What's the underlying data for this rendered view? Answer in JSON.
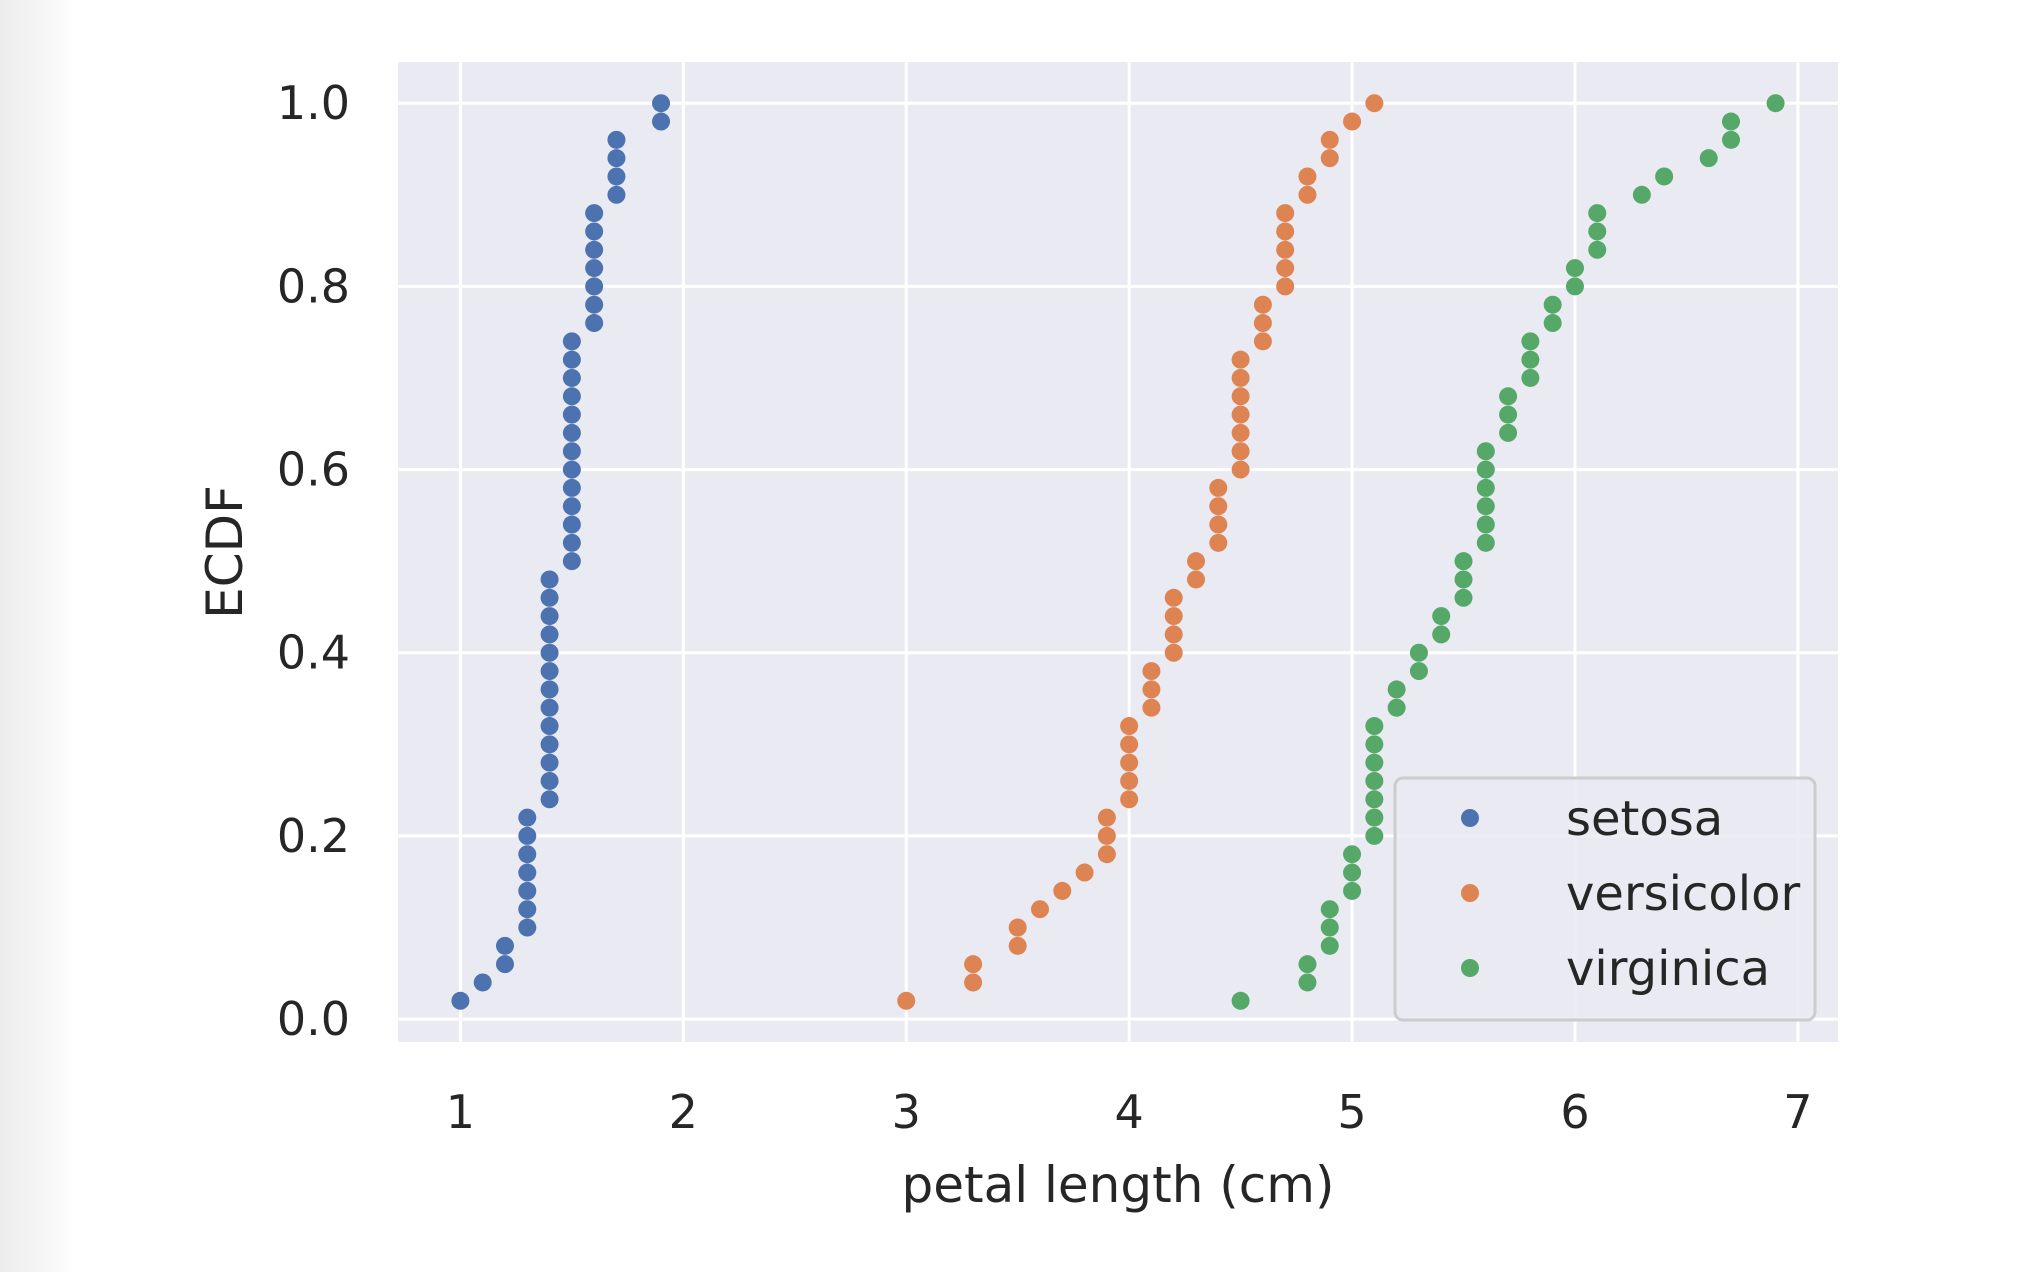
{
  "chart_data": {
    "type": "scatter",
    "title": "",
    "xlabel": "petal length (cm)",
    "ylabel": "ECDF",
    "xlim": [
      0.72,
      7.18
    ],
    "ylim": [
      -0.025,
      1.045
    ],
    "xticks": [
      1,
      2,
      3,
      4,
      5,
      6,
      7
    ],
    "yticks": [
      0.0,
      0.2,
      0.4,
      0.6,
      0.8,
      1.0
    ],
    "xtick_labels": [
      "1",
      "2",
      "3",
      "4",
      "5",
      "6",
      "7"
    ],
    "ytick_labels": [
      "0.0",
      "0.2",
      "0.4",
      "0.6",
      "0.8",
      "1.0"
    ],
    "grid": true,
    "legend_placement": "lower-right",
    "series": [
      {
        "name": "setosa",
        "color": "#4c72b0",
        "x": [
          1.0,
          1.1,
          1.2,
          1.2,
          1.3,
          1.3,
          1.3,
          1.3,
          1.3,
          1.3,
          1.3,
          1.4,
          1.4,
          1.4,
          1.4,
          1.4,
          1.4,
          1.4,
          1.4,
          1.4,
          1.4,
          1.4,
          1.4,
          1.4,
          1.5,
          1.5,
          1.5,
          1.5,
          1.5,
          1.5,
          1.5,
          1.5,
          1.5,
          1.5,
          1.5,
          1.5,
          1.5,
          1.6,
          1.6,
          1.6,
          1.6,
          1.6,
          1.6,
          1.6,
          1.7,
          1.7,
          1.7,
          1.7,
          1.9,
          1.9
        ],
        "y": [
          0.02,
          0.04,
          0.06,
          0.08,
          0.1,
          0.12,
          0.14,
          0.16,
          0.18,
          0.2,
          0.22,
          0.24,
          0.26,
          0.28,
          0.3,
          0.32,
          0.34,
          0.36,
          0.38,
          0.4,
          0.42,
          0.44,
          0.46,
          0.48,
          0.5,
          0.52,
          0.54,
          0.56,
          0.58,
          0.6,
          0.62,
          0.64,
          0.66,
          0.68,
          0.7,
          0.72,
          0.74,
          0.76,
          0.78,
          0.8,
          0.82,
          0.84,
          0.86,
          0.88,
          0.9,
          0.92,
          0.94,
          0.96,
          0.98,
          1.0
        ]
      },
      {
        "name": "versicolor",
        "color": "#dd8452",
        "x": [
          3.0,
          3.3,
          3.3,
          3.5,
          3.5,
          3.6,
          3.7,
          3.8,
          3.9,
          3.9,
          3.9,
          4.0,
          4.0,
          4.0,
          4.0,
          4.0,
          4.1,
          4.1,
          4.1,
          4.2,
          4.2,
          4.2,
          4.2,
          4.3,
          4.3,
          4.4,
          4.4,
          4.4,
          4.4,
          4.5,
          4.5,
          4.5,
          4.5,
          4.5,
          4.5,
          4.5,
          4.6,
          4.6,
          4.6,
          4.7,
          4.7,
          4.7,
          4.7,
          4.7,
          4.8,
          4.8,
          4.9,
          4.9,
          5.0,
          5.1
        ],
        "y": [
          0.02,
          0.04,
          0.06,
          0.08,
          0.1,
          0.12,
          0.14,
          0.16,
          0.18,
          0.2,
          0.22,
          0.24,
          0.26,
          0.28,
          0.3,
          0.32,
          0.34,
          0.36,
          0.38,
          0.4,
          0.42,
          0.44,
          0.46,
          0.48,
          0.5,
          0.52,
          0.54,
          0.56,
          0.58,
          0.6,
          0.62,
          0.64,
          0.66,
          0.68,
          0.7,
          0.72,
          0.74,
          0.76,
          0.78,
          0.8,
          0.82,
          0.84,
          0.86,
          0.88,
          0.9,
          0.92,
          0.94,
          0.96,
          0.98,
          1.0
        ]
      },
      {
        "name": "virginica",
        "color": "#55a868",
        "x": [
          4.5,
          4.8,
          4.8,
          4.9,
          4.9,
          4.9,
          5.0,
          5.0,
          5.0,
          5.1,
          5.1,
          5.1,
          5.1,
          5.1,
          5.1,
          5.1,
          5.2,
          5.2,
          5.3,
          5.3,
          5.4,
          5.4,
          5.5,
          5.5,
          5.5,
          5.6,
          5.6,
          5.6,
          5.6,
          5.6,
          5.6,
          5.7,
          5.7,
          5.7,
          5.8,
          5.8,
          5.8,
          5.9,
          5.9,
          6.0,
          6.0,
          6.1,
          6.1,
          6.1,
          6.3,
          6.4,
          6.6,
          6.7,
          6.7,
          6.9
        ],
        "y": [
          0.02,
          0.04,
          0.06,
          0.08,
          0.1,
          0.12,
          0.14,
          0.16,
          0.18,
          0.2,
          0.22,
          0.24,
          0.26,
          0.28,
          0.3,
          0.32,
          0.34,
          0.36,
          0.38,
          0.4,
          0.42,
          0.44,
          0.46,
          0.48,
          0.5,
          0.52,
          0.54,
          0.56,
          0.58,
          0.6,
          0.62,
          0.64,
          0.66,
          0.68,
          0.7,
          0.72,
          0.74,
          0.76,
          0.78,
          0.8,
          0.82,
          0.84,
          0.86,
          0.88,
          0.9,
          0.92,
          0.94,
          0.96,
          0.98,
          1.0
        ]
      }
    ]
  }
}
